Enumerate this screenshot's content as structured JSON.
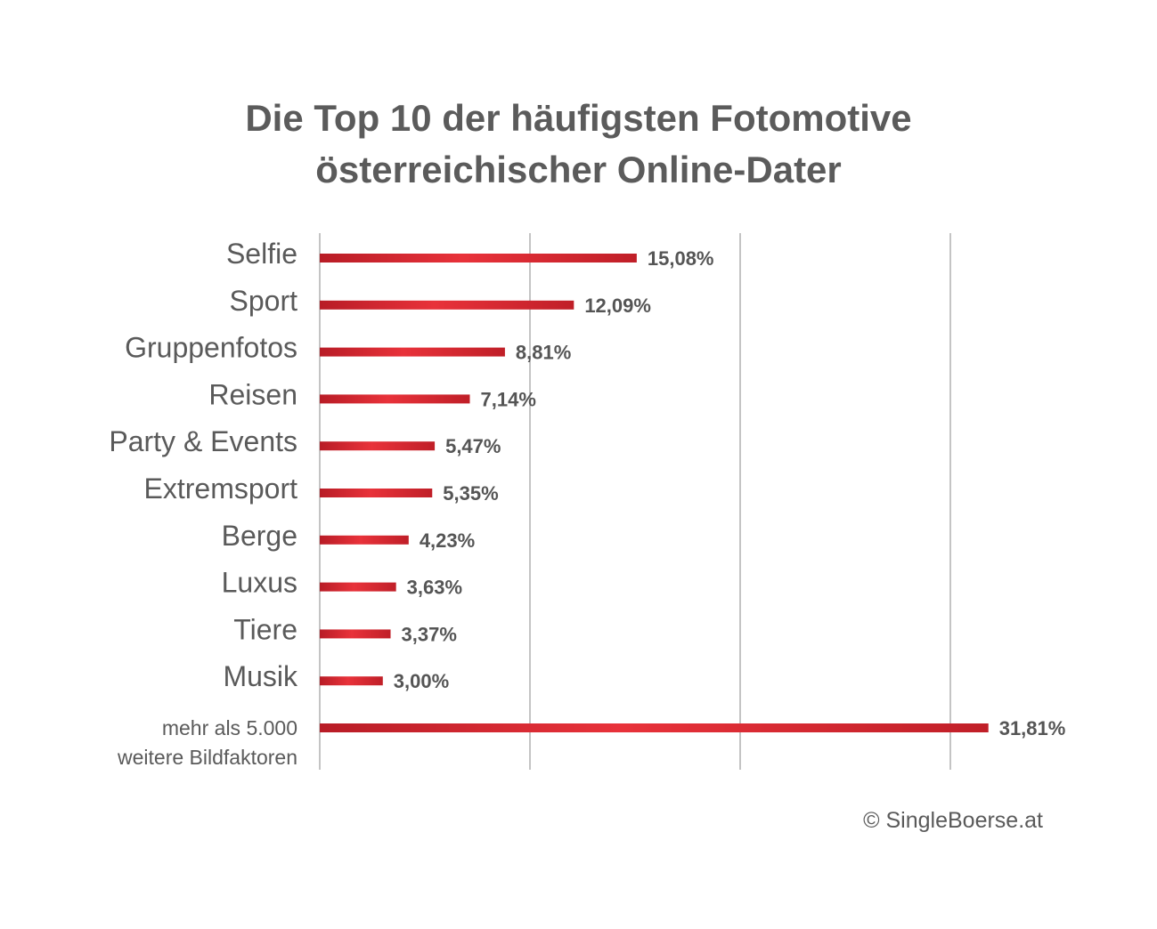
{
  "chart_data": {
    "type": "bar",
    "orientation": "horizontal",
    "title": [
      "Die Top 10 der häufigsten Fotomotive",
      "österreichischer Online-Dater"
    ],
    "categories": [
      [
        "Selfie"
      ],
      [
        "Sport"
      ],
      [
        "Gruppenfotos"
      ],
      [
        "Reisen"
      ],
      [
        "Party & Events"
      ],
      [
        "Extremsport"
      ],
      [
        "Berge"
      ],
      [
        "Luxus"
      ],
      [
        "Tiere"
      ],
      [
        "Musik"
      ],
      [
        "mehr als 5.000",
        "weitere Bildfaktoren"
      ]
    ],
    "values": [
      15.08,
      12.09,
      8.81,
      7.14,
      5.47,
      5.35,
      4.23,
      3.63,
      3.37,
      3.0,
      31.81
    ],
    "value_labels": [
      "15,08%",
      "12,09%",
      "8,81%",
      "7,14%",
      "5,47%",
      "5,35%",
      "4,23%",
      "3,63%",
      "3,37%",
      "3,00%",
      "31,81%"
    ],
    "xlim": [
      0,
      40
    ],
    "gridlines": [
      0,
      10,
      20,
      30
    ],
    "grid": true,
    "bar_color": "#c8202a",
    "bar_highlight": "#e8323a",
    "grid_color": "#888888"
  },
  "footer": {
    "copyright": "© SingleBoerse.at"
  }
}
